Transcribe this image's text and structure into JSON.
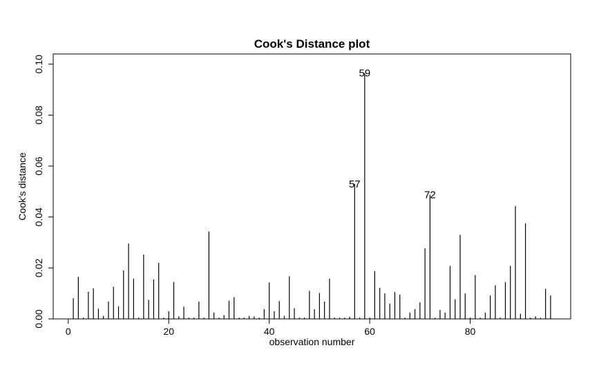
{
  "chart_data": {
    "type": "bar",
    "title": "Cook's Distance plot",
    "xlabel": "observation number",
    "ylabel": "Cook's distance",
    "xlim": [
      -3,
      100
    ],
    "ylim": [
      0,
      0.104
    ],
    "xticks": [
      0,
      20,
      40,
      60,
      80
    ],
    "xtick_labels": [
      "0",
      "20",
      "40",
      "60",
      "80"
    ],
    "yticks": [
      0.0,
      0.02,
      0.04,
      0.06,
      0.08,
      0.1
    ],
    "ytick_labels": [
      "0.00",
      "0.02",
      "0.04",
      "0.06",
      "0.08",
      "0.10"
    ],
    "grid": false,
    "x": [
      1,
      2,
      3,
      4,
      5,
      6,
      7,
      8,
      9,
      10,
      11,
      12,
      13,
      14,
      15,
      16,
      17,
      18,
      19,
      20,
      21,
      22,
      23,
      24,
      25,
      26,
      27,
      28,
      29,
      30,
      31,
      32,
      33,
      34,
      35,
      36,
      37,
      38,
      39,
      40,
      41,
      42,
      43,
      44,
      45,
      46,
      47,
      48,
      49,
      50,
      51,
      52,
      53,
      54,
      55,
      56,
      57,
      58,
      59,
      60,
      61,
      62,
      63,
      64,
      65,
      66,
      67,
      68,
      69,
      70,
      71,
      72,
      73,
      74,
      75,
      76,
      77,
      78,
      79,
      80,
      81,
      82,
      83,
      84,
      85,
      86,
      87,
      88,
      89,
      90,
      91,
      92,
      93,
      94,
      95,
      96
    ],
    "values": [
      0.0081,
      0.0165,
      0.0005,
      0.0107,
      0.012,
      0.004,
      0.0012,
      0.0068,
      0.0126,
      0.005,
      0.019,
      0.0296,
      0.0158,
      0.0005,
      0.0253,
      0.0075,
      0.0155,
      0.022,
      0.0005,
      0.003,
      0.0145,
      0.001,
      0.0048,
      0.0005,
      0.0005,
      0.0068,
      0.0005,
      0.0343,
      0.0025,
      0.0005,
      0.0015,
      0.0072,
      0.0085,
      0.0005,
      0.0005,
      0.0012,
      0.001,
      0.0005,
      0.0038,
      0.0143,
      0.003,
      0.007,
      0.0012,
      0.0167,
      0.0042,
      0.0005,
      0.0005,
      0.011,
      0.0038,
      0.0102,
      0.0068,
      0.0158,
      0.0005,
      0.0005,
      0.0005,
      0.0008,
      0.053,
      0.0005,
      0.0965,
      0.0005,
      0.0188,
      0.0122,
      0.01,
      0.006,
      0.0105,
      0.0095,
      0.0005,
      0.0025,
      0.0038,
      0.0065,
      0.0277,
      0.0487,
      0.0005,
      0.0035,
      0.0025,
      0.0208,
      0.0077,
      0.033,
      0.01,
      0.0005,
      0.0172,
      0.0005,
      0.0025,
      0.0092,
      0.0132,
      0.0005,
      0.0145,
      0.0208,
      0.0443,
      0.002,
      0.0375,
      0.0005,
      0.001,
      0.0005,
      0.0118,
      0.0092
    ],
    "annotations": [
      {
        "x": 57,
        "y": 0.053,
        "label": "57"
      },
      {
        "x": 59,
        "y": 0.0965,
        "label": "59"
      },
      {
        "x": 72,
        "y": 0.0487,
        "label": "72"
      }
    ]
  }
}
